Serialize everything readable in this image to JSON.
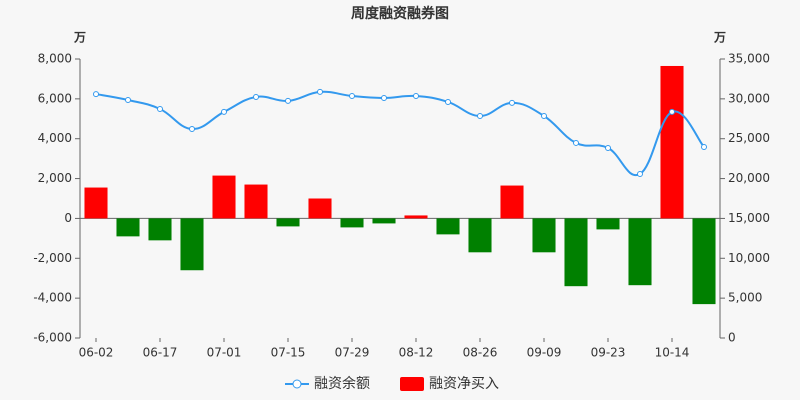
{
  "chart_data": {
    "type": "bar-line",
    "title": "周度融资融券图",
    "y_unit": "万",
    "y2_unit": "万",
    "categories": [
      "06-02",
      null,
      "06-17",
      null,
      "07-01",
      null,
      "07-15",
      null,
      "07-29",
      null,
      "08-12",
      null,
      "08-26",
      null,
      "09-09",
      null,
      "09-23",
      null,
      "10-14",
      null
    ],
    "series": [
      {
        "name": "融资余额",
        "type": "line",
        "axis": "y2",
        "color": "#3399ee",
        "values": [
          30600,
          29860,
          28730,
          26220,
          28360,
          30240,
          29740,
          30870,
          30360,
          30110,
          30360,
          29610,
          27850,
          29490,
          27850,
          24470,
          23840,
          20580,
          28360,
          23960
        ]
      },
      {
        "name": "融资净买入",
        "type": "bar",
        "axis": "y",
        "color": "#ff0000",
        "negative_color": "#008000",
        "values": [
          1550,
          -900,
          -1100,
          -2600,
          2150,
          1700,
          -400,
          1000,
          -450,
          -250,
          150,
          -800,
          -1700,
          1650,
          -1700,
          -3400,
          -550,
          -3350,
          7650,
          -4300
        ]
      }
    ],
    "ylim": [
      -6000,
      8000
    ],
    "yticks": [
      {
        "value": -6000,
        "label": "-6,000"
      },
      {
        "value": -4000,
        "label": "-4,000"
      },
      {
        "value": -2000,
        "label": "-2,000"
      },
      0,
      {
        "value": 2000,
        "label": "2,000"
      },
      {
        "value": 4000,
        "label": "4,000"
      },
      {
        "value": 6000,
        "label": "6,000"
      },
      {
        "value": 8000,
        "label": "8,000"
      }
    ],
    "y2lim": [
      0,
      35000
    ],
    "y2ticks": [
      0,
      {
        "value": 5000,
        "label": "5,000"
      },
      {
        "value": 10000,
        "label": "10,000"
      },
      {
        "value": 15000,
        "label": "15,000"
      },
      {
        "value": 20000,
        "label": "20,000"
      },
      {
        "value": 25000,
        "label": "25,000"
      },
      {
        "value": 30000,
        "label": "30,000"
      },
      {
        "value": 35000,
        "label": "35,000"
      }
    ],
    "grid": false
  }
}
